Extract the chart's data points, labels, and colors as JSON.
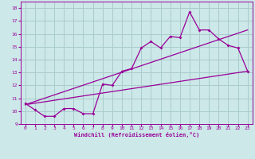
{
  "title": "",
  "xlabel": "Windchill (Refroidissement éolien,°C)",
  "ylabel": "",
  "bg_color": "#cce8e8",
  "grid_color": "#aacccc",
  "line_color": "#990099",
  "xlim": [
    -0.5,
    23.5
  ],
  "ylim": [
    9,
    18.5
  ],
  "xticks": [
    0,
    1,
    2,
    3,
    4,
    5,
    6,
    7,
    8,
    9,
    10,
    11,
    12,
    13,
    14,
    15,
    16,
    17,
    18,
    19,
    20,
    21,
    22,
    23
  ],
  "yticks": [
    9,
    10,
    11,
    12,
    13,
    14,
    15,
    16,
    17,
    18
  ],
  "line1_x": [
    0,
    1,
    2,
    3,
    4,
    5,
    6,
    7,
    8,
    9,
    10,
    11,
    12,
    13,
    14,
    15,
    16,
    17,
    18,
    19,
    20,
    21,
    22,
    23
  ],
  "line1_y": [
    10.6,
    10.1,
    9.6,
    9.6,
    10.2,
    10.2,
    9.8,
    9.8,
    12.1,
    12.0,
    13.1,
    13.3,
    14.9,
    15.4,
    14.9,
    15.8,
    15.7,
    17.7,
    16.3,
    16.3,
    15.6,
    15.1,
    14.9,
    13.1
  ],
  "line2_x": [
    0,
    23
  ],
  "line2_y": [
    10.5,
    13.1
  ],
  "line3_x": [
    0,
    23
  ],
  "line3_y": [
    10.5,
    16.3
  ]
}
